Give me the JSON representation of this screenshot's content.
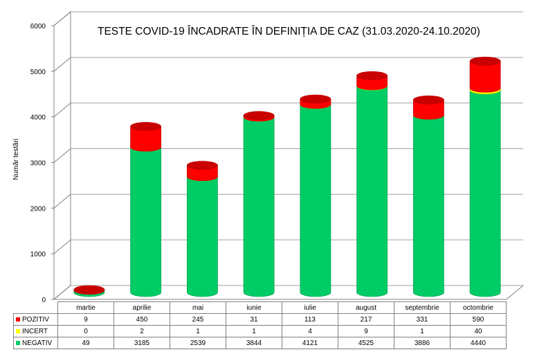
{
  "chart_data": {
    "type": "bar",
    "stacked": true,
    "three_d": true,
    "title": "TESTE COVID-19 ÎNCADRATE ÎN DEFINIȚIA DE CAZ (31.03.2020-24.10.2020)",
    "ylabel": "Număr testări",
    "ylim": [
      0,
      6000
    ],
    "yticks": [
      "0",
      "1000",
      "2000",
      "3000",
      "4000",
      "5000",
      "6000"
    ],
    "grid": true,
    "legend": "data-table",
    "categories": [
      "martie",
      "aprilie",
      "mai",
      "iunie",
      "iulie",
      "august",
      "septembrie",
      "octombrie"
    ],
    "series": [
      {
        "name": "POZITIV",
        "color": "#ff0000",
        "values": [
          9,
          450,
          245,
          31,
          113,
          217,
          331,
          590
        ]
      },
      {
        "name": "INCERT",
        "color": "#ffff00",
        "values": [
          0,
          2,
          1,
          1,
          4,
          9,
          1,
          40
        ]
      },
      {
        "name": "NEGATIV",
        "color": "#00cc66",
        "values": [
          49,
          3185,
          2539,
          3844,
          4121,
          4525,
          3886,
          4440
        ]
      }
    ]
  }
}
